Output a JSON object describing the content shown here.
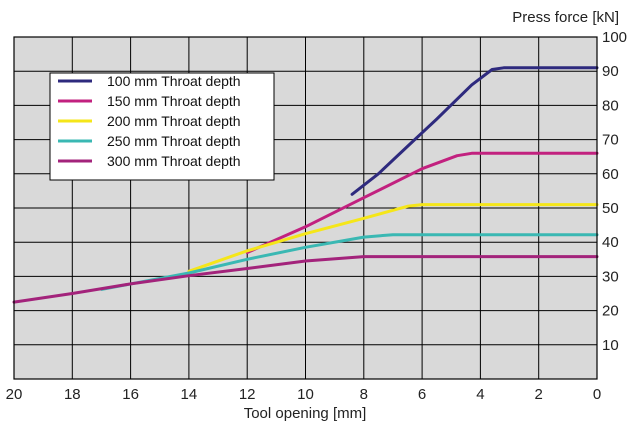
{
  "chart_data": {
    "type": "line",
    "xlabel": "Tool opening [mm]",
    "ylabel": "Press force [kN]",
    "xlim": [
      20,
      0
    ],
    "ylim": [
      0,
      100
    ],
    "x_ticks": [
      20,
      18,
      16,
      14,
      12,
      10,
      8,
      6,
      4,
      2,
      0
    ],
    "y_ticks": [
      10,
      20,
      30,
      40,
      50,
      60,
      70,
      80,
      90,
      100
    ],
    "grid": true,
    "legend_position": "top-left",
    "plot_background": "#d9d9d9",
    "series": [
      {
        "name": "100 mm Throat depth",
        "color": "#2e2a7e",
        "points": [
          [
            8.4,
            54
          ],
          [
            7.5,
            60
          ],
          [
            6.5,
            68
          ],
          [
            5.5,
            76
          ],
          [
            4.3,
            86
          ],
          [
            3.6,
            90.5
          ],
          [
            3.2,
            91
          ],
          [
            0,
            91
          ]
        ]
      },
      {
        "name": "150 mm Throat depth",
        "color": "#c2217f",
        "points": [
          [
            12,
            37
          ],
          [
            10,
            44.5
          ],
          [
            8,
            53
          ],
          [
            6,
            61.5
          ],
          [
            4.8,
            65.3
          ],
          [
            4.3,
            66
          ],
          [
            0,
            66
          ]
        ]
      },
      {
        "name": "200 mm Throat depth",
        "color": "#f5e619",
        "points": [
          [
            14,
            31.5
          ],
          [
            12,
            37.5
          ],
          [
            10,
            42.5
          ],
          [
            8,
            47
          ],
          [
            6.5,
            50.5
          ],
          [
            6,
            51
          ],
          [
            0,
            51
          ]
        ]
      },
      {
        "name": "250 mm Throat depth",
        "color": "#3ab8b3",
        "points": [
          [
            17,
            26.2
          ],
          [
            14,
            31
          ],
          [
            12,
            35
          ],
          [
            10,
            38.5
          ],
          [
            8,
            41.5
          ],
          [
            7,
            42.2
          ],
          [
            0,
            42.2
          ]
        ]
      },
      {
        "name": "300 mm Throat depth",
        "color": "#a3237b",
        "points": [
          [
            20,
            22.5
          ],
          [
            18,
            25
          ],
          [
            16,
            27.8
          ],
          [
            14,
            30.2
          ],
          [
            12,
            32.3
          ],
          [
            10,
            34.5
          ],
          [
            8,
            35.8
          ],
          [
            0,
            35.8
          ]
        ]
      }
    ]
  }
}
